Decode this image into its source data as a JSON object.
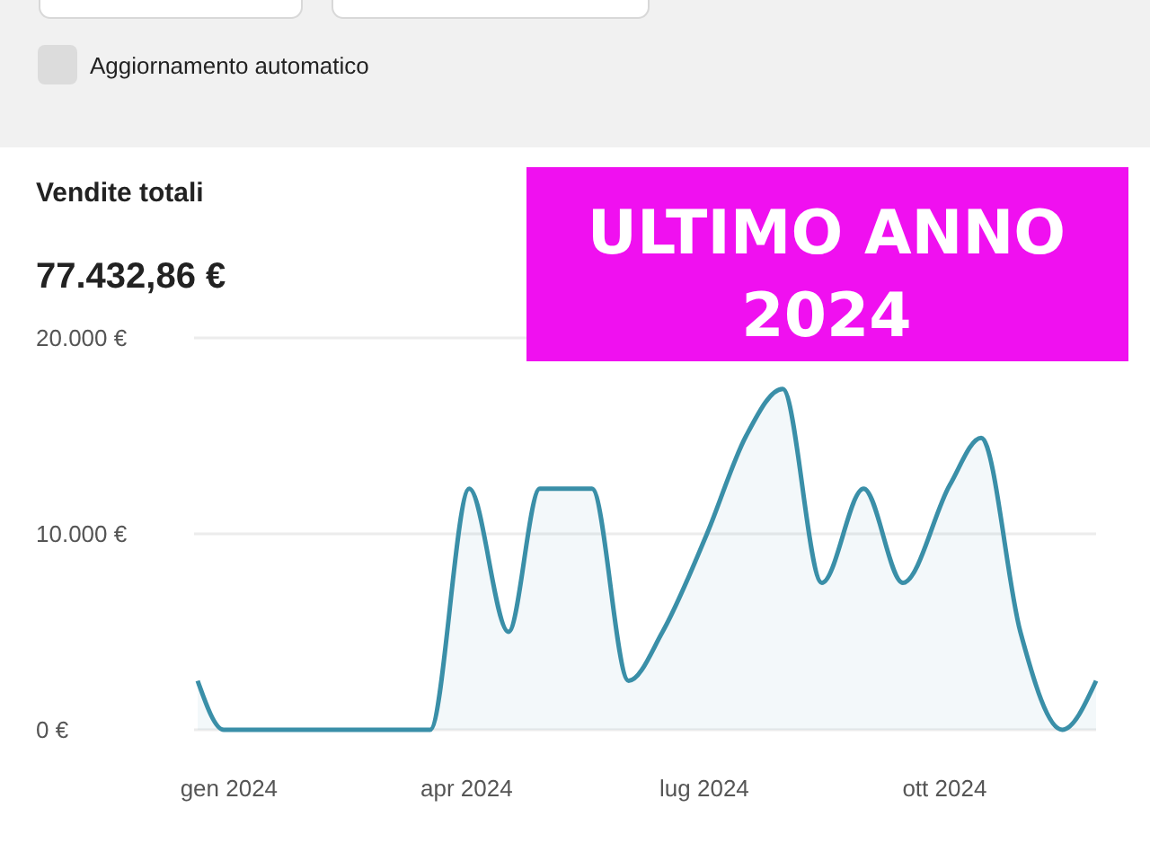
{
  "chart_data": {
    "type": "area",
    "title": "Vendite totali",
    "subtitle": "77.432,86 €",
    "annotations": [
      "Aggiornamento automatico",
      "ULTIMO ANNO 2024"
    ],
    "x": [
      "2023-12-20",
      "2023-12-30",
      "2024-01-15",
      "2024-02-15",
      "2024-03-18",
      "2024-04-02",
      "2024-04-17",
      "2024-04-29",
      "2024-05-19",
      "2024-06-02",
      "2024-06-15",
      "2024-07-02",
      "2024-07-17",
      "2024-07-31",
      "2024-08-15",
      "2024-08-31",
      "2024-09-15",
      "2024-10-03",
      "2024-10-15",
      "2024-10-30",
      "2024-11-15",
      "2024-11-28"
    ],
    "series": [
      {
        "color": "#3a8fa8",
        "values": [
          2500,
          0,
          0,
          0,
          0,
          12300,
          5000,
          12300,
          12300,
          2500,
          5000,
          10000,
          15000,
          17400,
          7500,
          12300,
          7500,
          12500,
          14900,
          5000,
          0,
          2500
        ]
      }
    ],
    "xlim": [
      "2023-12-20",
      "2024-11-28"
    ],
    "xticks": [
      {
        "value": "2024-01-01",
        "label": "gen 2024"
      },
      {
        "value": "2024-04-01",
        "label": "apr 2024"
      },
      {
        "value": "2024-07-01",
        "label": "lug 2024"
      },
      {
        "value": "2024-10-01",
        "label": "ott 2024"
      }
    ],
    "ylim": [
      0,
      20000
    ],
    "yticks": [
      {
        "value": 0,
        "label": "0 €"
      },
      {
        "value": 10000,
        "label": "10.000 €"
      },
      {
        "value": 20000,
        "label": "20.000 €"
      }
    ],
    "grid": "y"
  }
}
